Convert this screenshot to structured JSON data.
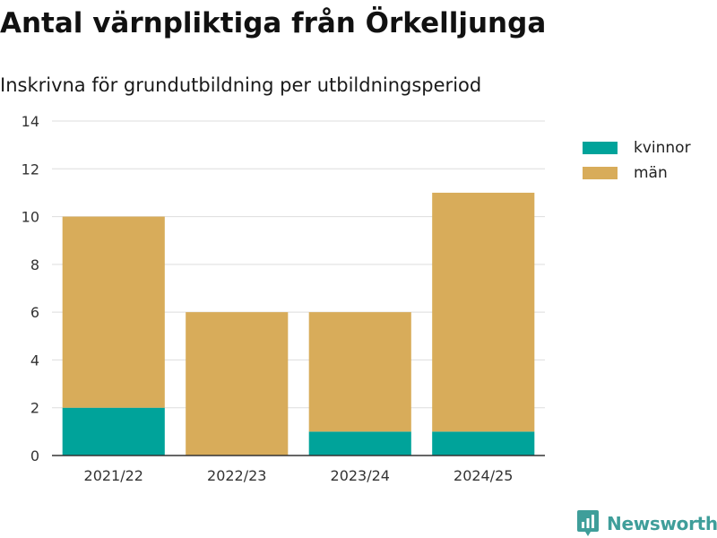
{
  "title": "Antal värnpliktiga från Örkelljunga",
  "subtitle": "Inskrivna för grundutbildning per utbildningsperiod",
  "brand": {
    "name": "Newsworthy",
    "icon": "newsworthy-logo-icon"
  },
  "chart_data": {
    "type": "bar",
    "stacked": true,
    "categories": [
      "2021/22",
      "2022/23",
      "2023/24",
      "2024/25"
    ],
    "series": [
      {
        "name": "kvinnor",
        "color": "#00a39a",
        "values": [
          2,
          0,
          1,
          1
        ]
      },
      {
        "name": "män",
        "color": "#d8ac5a",
        "values": [
          8,
          6,
          5,
          10
        ]
      }
    ],
    "ylim": [
      0,
      14
    ],
    "yticks": [
      0,
      2,
      4,
      6,
      8,
      10,
      12,
      14
    ],
    "grid": true,
    "legend": "top-right",
    "xlabel": "",
    "ylabel": ""
  }
}
